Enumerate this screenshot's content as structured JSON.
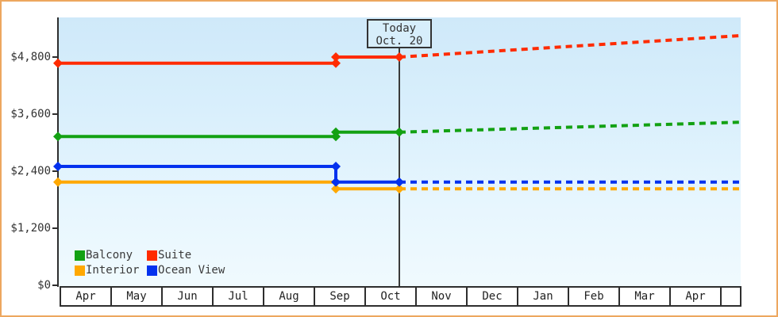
{
  "frame": {
    "border_color": "#eda75f"
  },
  "chart_data": {
    "type": "line",
    "title": "",
    "currency": "USD",
    "today": {
      "label_line1": "Today",
      "label_line2": "Oct. 20",
      "t": 0.5
    },
    "y_axis": {
      "ticks": [
        {
          "label": "$0",
          "value": 0
        },
        {
          "label": "$1,200",
          "value": 1200
        },
        {
          "label": "$2,400",
          "value": 2400
        },
        {
          "label": "$3,600",
          "value": 3600
        },
        {
          "label": "$4,800",
          "value": 4800
        }
      ],
      "min": 0,
      "max_visible": 5650,
      "grid": "off"
    },
    "x_axis": {
      "months": [
        "Apr",
        "May",
        "Jun",
        "Jul",
        "Aug",
        "Sep",
        "Oct",
        "Nov",
        "Dec",
        "Jan",
        "Feb",
        "Mar",
        "Apr"
      ]
    },
    "legend_position": "bottom-left-inside",
    "series": [
      {
        "name": "Balcony",
        "color": "#13a113",
        "history": [
          {
            "t": 0,
            "v": 3130
          },
          {
            "t": 0.407,
            "v": 3130
          },
          {
            "t": 0.407,
            "v": 3220
          },
          {
            "t": 0.5,
            "v": 3220
          }
        ],
        "forecast": [
          {
            "t": 0.5,
            "v": 3220
          },
          {
            "t": 1,
            "v": 3430
          }
        ]
      },
      {
        "name": "Suite",
        "color": "#ff2b00",
        "history": [
          {
            "t": 0,
            "v": 4670
          },
          {
            "t": 0.407,
            "v": 4670
          },
          {
            "t": 0.407,
            "v": 4800
          },
          {
            "t": 0.5,
            "v": 4800
          }
        ],
        "forecast": [
          {
            "t": 0.5,
            "v": 4800
          },
          {
            "t": 1,
            "v": 5250
          }
        ]
      },
      {
        "name": "Interior",
        "color": "#ffa800",
        "history": [
          {
            "t": 0,
            "v": 2170
          },
          {
            "t": 0.407,
            "v": 2170
          },
          {
            "t": 0.407,
            "v": 2030
          },
          {
            "t": 0.5,
            "v": 2030
          }
        ],
        "forecast": [
          {
            "t": 0.5,
            "v": 2030
          },
          {
            "t": 1,
            "v": 2030
          }
        ]
      },
      {
        "name": "Ocean View",
        "color": "#0331ee",
        "history": [
          {
            "t": 0,
            "v": 2500
          },
          {
            "t": 0.407,
            "v": 2500
          },
          {
            "t": 0.407,
            "v": 2170
          },
          {
            "t": 0.5,
            "v": 2170
          }
        ],
        "forecast": [
          {
            "t": 0.5,
            "v": 2170
          },
          {
            "t": 1,
            "v": 2170
          }
        ]
      }
    ]
  }
}
